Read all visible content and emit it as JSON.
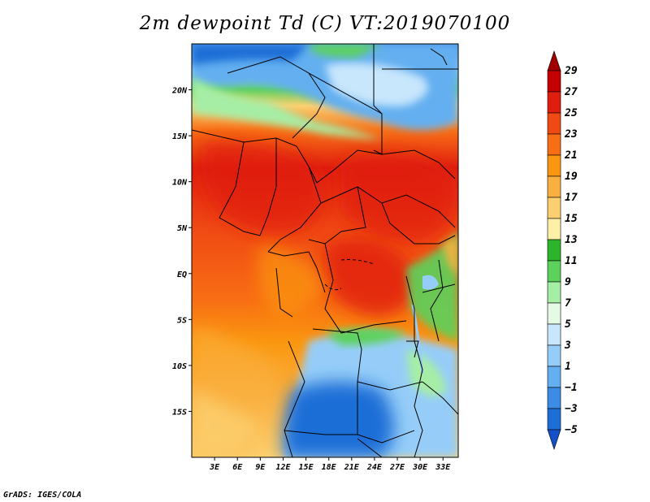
{
  "title": "2m dewpoint Td (C) VT:2019070100",
  "credit": "GrADS: IGES/COLA",
  "map": {
    "lon_range": [
      0,
      35
    ],
    "lat_range": [
      -20,
      25
    ],
    "lon_ticks": [
      {
        "value": 3,
        "label": "3E"
      },
      {
        "value": 6,
        "label": "6E"
      },
      {
        "value": 9,
        "label": "9E"
      },
      {
        "value": 12,
        "label": "12E"
      },
      {
        "value": 15,
        "label": "15E"
      },
      {
        "value": 18,
        "label": "18E"
      },
      {
        "value": 21,
        "label": "21E"
      },
      {
        "value": 24,
        "label": "24E"
      },
      {
        "value": 27,
        "label": "27E"
      },
      {
        "value": 30,
        "label": "30E"
      },
      {
        "value": 33,
        "label": "33E"
      }
    ],
    "lat_ticks": [
      {
        "value": 20,
        "label": "20N"
      },
      {
        "value": 15,
        "label": "15N"
      },
      {
        "value": 10,
        "label": "10N"
      },
      {
        "value": 5,
        "label": "5N"
      },
      {
        "value": 0,
        "label": "EQ"
      },
      {
        "value": -5,
        "label": "5S"
      },
      {
        "value": -10,
        "label": "10S"
      },
      {
        "value": -15,
        "label": "15S"
      }
    ]
  },
  "colorbar": {
    "labels": [
      "29",
      "27",
      "25",
      "23",
      "21",
      "19",
      "17",
      "15",
      "13",
      "11",
      "9",
      "7",
      "5",
      "3",
      "1",
      "−1",
      "−3",
      "−5"
    ],
    "colors": [
      "#a00000",
      "#c40000",
      "#e01e10",
      "#f04a14",
      "#f86e14",
      "#fa960f",
      "#fab040",
      "#fcd070",
      "#fff0a8",
      "#2db42d",
      "#5cd25c",
      "#a6eea6",
      "#e4fae4",
      "#c8e6fc",
      "#96cdf8",
      "#64aff0",
      "#3c8ce6",
      "#1e6ed7",
      "#1450c8"
    ]
  }
}
